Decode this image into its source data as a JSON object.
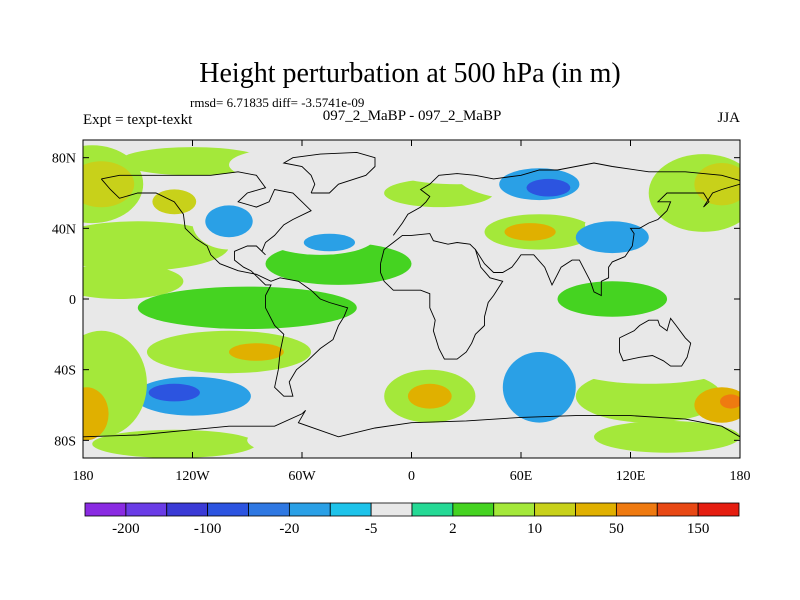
{
  "chart_data": {
    "type": "heatmap",
    "title": "Height perturbation at 500 hPa (in m)",
    "stats_text": "rmsd= 6.71835 diff= -3.5741e-09",
    "subtitle": "097_2_MaBP - 097_2_MaBP",
    "left_label": "Expt = texpt-texkt",
    "right_label": "JJA",
    "xlim": [
      -180,
      180
    ],
    "ylim": [
      -90,
      90
    ],
    "x_ticks": [
      {
        "value": -180,
        "label": "180"
      },
      {
        "value": -120,
        "label": "120W"
      },
      {
        "value": -60,
        "label": "60W"
      },
      {
        "value": 0,
        "label": "0"
      },
      {
        "value": 60,
        "label": "60E"
      },
      {
        "value": 120,
        "label": "120E"
      },
      {
        "value": 180,
        "label": "180"
      }
    ],
    "y_ticks": [
      {
        "value": 80,
        "label": "80N"
      },
      {
        "value": 40,
        "label": "40N"
      },
      {
        "value": 0,
        "label": "0"
      },
      {
        "value": -40,
        "label": "40S"
      },
      {
        "value": -80,
        "label": "80S"
      }
    ],
    "background_value": 0,
    "colorbar": {
      "colors": [
        "#8a2be2",
        "#6a3ce6",
        "#3b3bd6",
        "#2c54e0",
        "#2f78e2",
        "#2aa0e6",
        "#1ec3ea",
        "#e8e8e8",
        "#25d995",
        "#45d321",
        "#a4e83a",
        "#c8d11a",
        "#e0b000",
        "#ef7a10",
        "#e84814",
        "#e51d10"
      ],
      "tick_labels": [
        {
          "index": 1,
          "label": "-200"
        },
        {
          "index": 3,
          "label": "-100"
        },
        {
          "index": 5,
          "label": "-20"
        },
        {
          "index": 7,
          "label": "-5"
        },
        {
          "index": 9,
          "label": "2"
        },
        {
          "index": 11,
          "label": "10"
        },
        {
          "index": 13,
          "label": "50"
        },
        {
          "index": 15,
          "label": "150"
        }
      ]
    },
    "field_blobs": [
      {
        "lon": -150,
        "lat": 30,
        "rlon": 50,
        "rlat": 14,
        "value": 5
      },
      {
        "lon": -160,
        "lat": 10,
        "rlon": 35,
        "rlat": 10,
        "value": 5
      },
      {
        "lon": -175,
        "lat": 65,
        "rlon": 28,
        "rlat": 22,
        "value": 5
      },
      {
        "lon": -170,
        "lat": 65,
        "rlon": 18,
        "rlat": 13,
        "value": 10
      },
      {
        "lon": -120,
        "lat": 78,
        "rlon": 40,
        "rlat": 8,
        "value": 5
      },
      {
        "lon": -130,
        "lat": 55,
        "rlon": 12,
        "rlat": 7,
        "value": 10
      },
      {
        "lon": -70,
        "lat": 76,
        "rlon": 30,
        "rlat": 9,
        "value": -3
      },
      {
        "lon": -100,
        "lat": 43,
        "rlon": 20,
        "rlat": 15,
        "value": -3
      },
      {
        "lon": -100,
        "lat": 44,
        "rlon": 13,
        "rlat": 9,
        "value": -20
      },
      {
        "lon": -90,
        "lat": -5,
        "rlon": 60,
        "rlat": 12,
        "value": 3
      },
      {
        "lon": -40,
        "lat": 20,
        "rlon": 40,
        "rlat": 12,
        "value": 3
      },
      {
        "lon": -120,
        "lat": -55,
        "rlon": 45,
        "rlat": 18,
        "value": -3
      },
      {
        "lon": -120,
        "lat": -55,
        "rlon": 32,
        "rlat": 11,
        "value": -20
      },
      {
        "lon": -130,
        "lat": -53,
        "rlon": 14,
        "rlat": 5,
        "value": -100
      },
      {
        "lon": -170,
        "lat": -48,
        "rlon": 25,
        "rlat": 30,
        "value": 5
      },
      {
        "lon": -178,
        "lat": -65,
        "rlon": 12,
        "rlat": 15,
        "value": 20
      },
      {
        "lon": -100,
        "lat": -30,
        "rlon": 45,
        "rlat": 12,
        "value": 5
      },
      {
        "lon": -85,
        "lat": -30,
        "rlon": 15,
        "rlat": 5,
        "value": 20
      },
      {
        "lon": -130,
        "lat": -82,
        "rlon": 45,
        "rlat": 8,
        "value": 5
      },
      {
        "lon": -60,
        "lat": -80,
        "rlon": 30,
        "rlat": 8,
        "value": -3
      },
      {
        "lon": -50,
        "lat": 35,
        "rlon": 30,
        "rlat": 10,
        "value": -3
      },
      {
        "lon": -45,
        "lat": 32,
        "rlon": 14,
        "rlat": 5,
        "value": -20
      },
      {
        "lon": 15,
        "lat": 40,
        "rlon": 30,
        "rlat": 10,
        "value": -3
      },
      {
        "lon": 15,
        "lat": 60,
        "rlon": 30,
        "rlat": 8,
        "value": 5
      },
      {
        "lon": 25,
        "lat": 75,
        "rlon": 40,
        "rlat": 10,
        "value": -3
      },
      {
        "lon": 65,
        "lat": 70,
        "rlon": 40,
        "rlat": 14,
        "value": -3
      },
      {
        "lon": 70,
        "lat": 65,
        "rlon": 22,
        "rlat": 9,
        "value": -20
      },
      {
        "lon": 75,
        "lat": 63,
        "rlon": 12,
        "rlat": 5,
        "value": -100
      },
      {
        "lon": 70,
        "lat": 38,
        "rlon": 30,
        "rlat": 10,
        "value": 5
      },
      {
        "lon": 65,
        "lat": 38,
        "rlon": 14,
        "rlat": 5,
        "value": 20
      },
      {
        "lon": 100,
        "lat": 15,
        "rlon": 40,
        "rlat": 10,
        "value": -3
      },
      {
        "lon": 120,
        "lat": 42,
        "rlon": 25,
        "rlat": 8,
        "value": -3
      },
      {
        "lon": 110,
        "lat": 35,
        "rlon": 20,
        "rlat": 9,
        "value": -20
      },
      {
        "lon": 160,
        "lat": 60,
        "rlon": 30,
        "rlat": 22,
        "value": 5
      },
      {
        "lon": 170,
        "lat": 65,
        "rlon": 15,
        "rlat": 12,
        "value": 10
      },
      {
        "lon": 50,
        "lat": -5,
        "rlon": 60,
        "rlat": 20,
        "value": -3
      },
      {
        "lon": 40,
        "lat": -40,
        "rlon": 40,
        "rlat": 30,
        "value": -3
      },
      {
        "lon": 10,
        "lat": -55,
        "rlon": 25,
        "rlat": 15,
        "value": 5
      },
      {
        "lon": 10,
        "lat": -55,
        "rlon": 12,
        "rlat": 7,
        "value": 20
      },
      {
        "lon": 70,
        "lat": -50,
        "rlon": 20,
        "rlat": 20,
        "value": -20
      },
      {
        "lon": 130,
        "lat": -55,
        "rlon": 40,
        "rlat": 15,
        "value": 5
      },
      {
        "lon": 170,
        "lat": -60,
        "rlon": 15,
        "rlat": 10,
        "value": 20
      },
      {
        "lon": 175,
        "lat": -58,
        "rlon": 6,
        "rlat": 4,
        "value": 60
      },
      {
        "lon": 130,
        "lat": -40,
        "rlon": 40,
        "rlat": 8,
        "value": -3
      },
      {
        "lon": 140,
        "lat": -78,
        "rlon": 40,
        "rlat": 9,
        "value": 5
      },
      {
        "lon": 110,
        "lat": 0,
        "rlon": 30,
        "rlat": 10,
        "value": 3
      }
    ],
    "coastlines": [
      [
        [
          -170,
          68
        ],
        [
          -160,
          70
        ],
        [
          -140,
          70
        ],
        [
          -130,
          70
        ],
        [
          -110,
          70
        ],
        [
          -95,
          72
        ],
        [
          -85,
          70
        ],
        [
          -80,
          63
        ],
        [
          -90,
          60
        ],
        [
          -95,
          55
        ],
        [
          -85,
          52
        ],
        [
          -78,
          55
        ],
        [
          -75,
          62
        ],
        [
          -65,
          60
        ],
        [
          -60,
          55
        ],
        [
          -55,
          50
        ],
        [
          -65,
          45
        ],
        [
          -70,
          42
        ],
        [
          -75,
          36
        ],
        [
          -80,
          32
        ],
        [
          -82,
          27
        ],
        [
          -80,
          25
        ],
        [
          -85,
          30
        ],
        [
          -90,
          30
        ],
        [
          -97,
          27
        ],
        [
          -97,
          22
        ],
        [
          -92,
          18
        ],
        [
          -88,
          16
        ],
        [
          -84,
          12
        ],
        [
          -80,
          8
        ],
        [
          -77,
          8
        ],
        [
          -80,
          2
        ],
        [
          -80,
          -5
        ],
        [
          -75,
          -15
        ],
        [
          -70,
          -20
        ],
        [
          -72,
          -30
        ],
        [
          -73,
          -40
        ],
        [
          -75,
          -50
        ],
        [
          -70,
          -55
        ],
        [
          -65,
          -55
        ],
        [
          -67,
          -47
        ],
        [
          -63,
          -40
        ],
        [
          -57,
          -35
        ],
        [
          -50,
          -28
        ],
        [
          -43,
          -23
        ],
        [
          -40,
          -15
        ],
        [
          -37,
          -10
        ],
        [
          -35,
          -5
        ],
        [
          -45,
          -2
        ],
        [
          -50,
          0
        ],
        [
          -55,
          5
        ],
        [
          -62,
          10
        ],
        [
          -72,
          12
        ],
        [
          -77,
          10
        ],
        [
          -85,
          14
        ],
        [
          -95,
          16
        ],
        [
          -105,
          20
        ],
        [
          -110,
          25
        ],
        [
          -112,
          30
        ],
        [
          -118,
          34
        ],
        [
          -124,
          40
        ],
        [
          -125,
          48
        ],
        [
          -130,
          55
        ],
        [
          -140,
          60
        ],
        [
          -150,
          60
        ],
        [
          -160,
          57
        ],
        [
          -165,
          62
        ],
        [
          -170,
          68
        ]
      ],
      [
        [
          -55,
          60
        ],
        [
          -45,
          60
        ],
        [
          -40,
          65
        ],
        [
          -25,
          70
        ],
        [
          -20,
          75
        ],
        [
          -20,
          80
        ],
        [
          -30,
          83
        ],
        [
          -50,
          82
        ],
        [
          -65,
          80
        ],
        [
          -70,
          77
        ],
        [
          -60,
          75
        ],
        [
          -55,
          70
        ],
        [
          -53,
          65
        ],
        [
          -55,
          60
        ]
      ],
      [
        [
          -10,
          36
        ],
        [
          -5,
          43
        ],
        [
          -2,
          48
        ],
        [
          5,
          52
        ],
        [
          8,
          55
        ],
        [
          10,
          58
        ],
        [
          5,
          62
        ],
        [
          10,
          65
        ],
        [
          15,
          70
        ],
        [
          25,
          71
        ],
        [
          35,
          70
        ],
        [
          45,
          68
        ],
        [
          60,
          70
        ],
        [
          70,
          73
        ],
        [
          80,
          73
        ],
        [
          100,
          77
        ],
        [
          110,
          75
        ],
        [
          130,
          72
        ],
        [
          150,
          72
        ],
        [
          170,
          70
        ],
        [
          180,
          67
        ]
      ],
      [
        [
          -17,
          20
        ],
        [
          -17,
          15
        ],
        [
          -15,
          10
        ],
        [
          -10,
          5
        ],
        [
          -5,
          5
        ],
        [
          5,
          5
        ],
        [
          10,
          3
        ],
        [
          10,
          -5
        ],
        [
          13,
          -12
        ],
        [
          12,
          -18
        ],
        [
          15,
          -28
        ],
        [
          18,
          -34
        ],
        [
          25,
          -34
        ],
        [
          30,
          -30
        ],
        [
          33,
          -25
        ],
        [
          35,
          -20
        ],
        [
          40,
          -15
        ],
        [
          40,
          -10
        ],
        [
          42,
          -2
        ],
        [
          45,
          2
        ],
        [
          50,
          10
        ],
        [
          43,
          12
        ],
        [
          38,
          18
        ],
        [
          35,
          28
        ],
        [
          32,
          31
        ],
        [
          25,
          32
        ],
        [
          20,
          31
        ],
        [
          12,
          33
        ],
        [
          10,
          37
        ],
        [
          0,
          36
        ],
        [
          -5,
          36
        ],
        [
          -10,
          32
        ],
        [
          -15,
          28
        ],
        [
          -17,
          20
        ]
      ],
      [
        [
          35,
          28
        ],
        [
          40,
          20
        ],
        [
          45,
          15
        ],
        [
          50,
          15
        ],
        [
          55,
          18
        ],
        [
          58,
          22
        ],
        [
          60,
          25
        ],
        [
          67,
          25
        ],
        [
          73,
          18
        ],
        [
          77,
          8
        ],
        [
          80,
          14
        ],
        [
          82,
          18
        ],
        [
          88,
          22
        ],
        [
          92,
          22
        ],
        [
          95,
          16
        ],
        [
          98,
          10
        ],
        [
          100,
          4
        ],
        [
          104,
          2
        ],
        [
          104,
          10
        ],
        [
          108,
          12
        ],
        [
          108,
          18
        ],
        [
          110,
          21
        ],
        [
          117,
          24
        ],
        [
          121,
          30
        ],
        [
          122,
          37
        ],
        [
          120,
          40
        ],
        [
          125,
          40
        ],
        [
          130,
          43
        ],
        [
          135,
          45
        ],
        [
          140,
          50
        ],
        [
          142,
          55
        ],
        [
          135,
          55
        ],
        [
          140,
          60
        ],
        [
          150,
          60
        ],
        [
          160,
          60
        ],
        [
          163,
          55
        ],
        [
          160,
          52
        ],
        [
          165,
          60
        ],
        [
          170,
          62
        ],
        [
          180,
          65
        ]
      ],
      [
        [
          114,
          -22
        ],
        [
          114,
          -30
        ],
        [
          116,
          -35
        ],
        [
          125,
          -33
        ],
        [
          132,
          -32
        ],
        [
          138,
          -35
        ],
        [
          142,
          -38
        ],
        [
          148,
          -38
        ],
        [
          151,
          -33
        ],
        [
          153,
          -25
        ],
        [
          150,
          -22
        ],
        [
          145,
          -15
        ],
        [
          142,
          -11
        ],
        [
          140,
          -18
        ],
        [
          136,
          -15
        ],
        [
          135,
          -12
        ],
        [
          130,
          -12
        ],
        [
          125,
          -15
        ],
        [
          122,
          -18
        ],
        [
          114,
          -22
        ]
      ],
      [
        [
          -180,
          -78
        ],
        [
          -150,
          -77
        ],
        [
          -120,
          -74
        ],
        [
          -100,
          -72
        ],
        [
          -75,
          -72
        ],
        [
          -60,
          -65
        ],
        [
          -58,
          -63
        ],
        [
          -62,
          -70
        ],
        [
          -40,
          -78
        ],
        [
          -20,
          -73
        ],
        [
          0,
          -70
        ],
        [
          30,
          -69
        ],
        [
          60,
          -67
        ],
        [
          90,
          -66
        ],
        [
          120,
          -66
        ],
        [
          150,
          -68
        ],
        [
          170,
          -72
        ],
        [
          180,
          -78
        ]
      ]
    ]
  }
}
